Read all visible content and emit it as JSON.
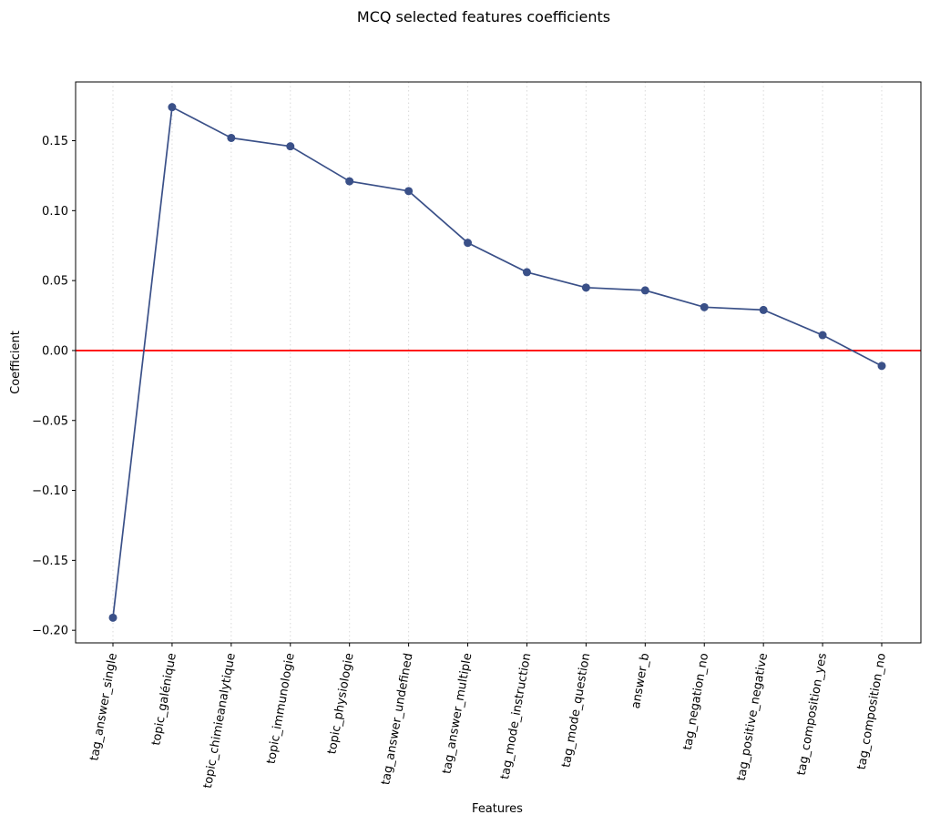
{
  "chart_data": {
    "type": "line",
    "title": "MCQ selected features coefficients",
    "xlabel": "Features",
    "ylabel": "Coefficient",
    "categories": [
      "tag_answer_single",
      "topic_galénique",
      "topic_chimieanalytique",
      "topic_immunologie",
      "topic_physiologie",
      "tag_answer_undefined",
      "tag_answer_multiple",
      "tag_mode_instruction",
      "tag_mode_question",
      "answer_b",
      "tag_negation_no",
      "tag_positive_negative",
      "tag_composition_yes",
      "tag_composition_no"
    ],
    "series": [
      {
        "values": [
          -0.191,
          0.174,
          0.152,
          0.146,
          0.121,
          0.114,
          0.077,
          0.056,
          0.045,
          0.043,
          0.031,
          0.029,
          0.011,
          -0.011
        ],
        "color": "#3a5088",
        "marker": "circle"
      }
    ],
    "reference_line": {
      "y": 0,
      "color": "#ff0000"
    },
    "ylim": [
      -0.209,
      0.192
    ],
    "yticks": [
      {
        "value": -0.2,
        "label": "−0.20"
      },
      {
        "value": -0.15,
        "label": "−0.15"
      },
      {
        "value": -0.1,
        "label": "−0.10"
      },
      {
        "value": -0.05,
        "label": "−0.05"
      },
      {
        "value": 0.0,
        "label": "0.00"
      },
      {
        "value": 0.05,
        "label": "0.05"
      },
      {
        "value": 0.1,
        "label": "0.10"
      },
      {
        "value": 0.15,
        "label": "0.15"
      }
    ],
    "xtick_rotation_deg": 80,
    "grid": {
      "x": true,
      "y": false,
      "style": "dotted"
    }
  }
}
